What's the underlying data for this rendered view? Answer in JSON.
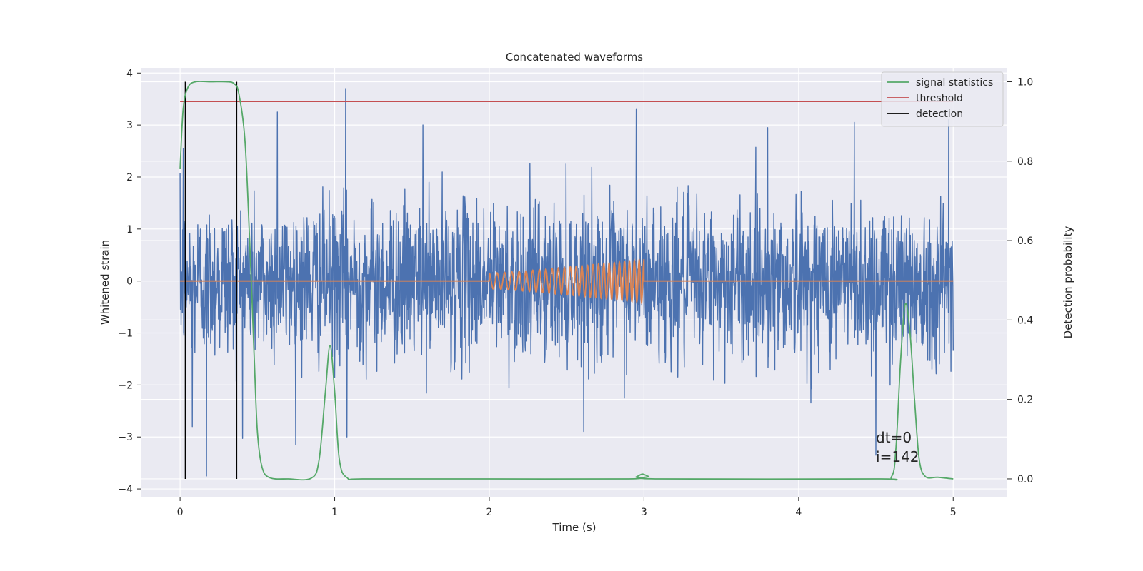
{
  "chart_data": {
    "type": "line",
    "title": "Concatenated waveforms",
    "xlabel": "Time (s)",
    "ylabel": "Whitened strain",
    "y2label": "Detection probability",
    "xlim": [
      -0.25,
      5.35
    ],
    "ylim": [
      -4.15,
      4.1
    ],
    "y2lim": [
      -0.045,
      1.035
    ],
    "xticks": [
      0,
      1,
      2,
      3,
      4,
      5
    ],
    "yticks": [
      -4,
      -3,
      -2,
      -1,
      0,
      1,
      2,
      3,
      4
    ],
    "y2ticks": [
      0.0,
      0.2,
      0.4,
      0.6,
      0.8,
      1.0
    ],
    "y2tick_labels": [
      "0.0",
      "0.2",
      "0.4",
      "0.6",
      "0.8",
      "1.0"
    ],
    "grid": true,
    "legend_position": "top-right",
    "series": [
      {
        "key": "noise",
        "name": "",
        "axis": "left",
        "color": "#4c72b0",
        "x_range": [
          0,
          5
        ],
        "sigma": 0.75,
        "spikes": [
          {
            "x": 0.02,
            "y": 2.55
          },
          {
            "x": 0.08,
            "y": -2.8
          },
          {
            "x": 0.17,
            "y": -3.75
          },
          {
            "x": 1.07,
            "y": 3.7
          },
          {
            "x": 1.08,
            "y": -3.0
          },
          {
            "x": 2.95,
            "y": 3.3
          },
          {
            "x": 4.97,
            "y": 3.1
          },
          {
            "x": 4.5,
            "y": -3.35
          },
          {
            "x": 0.63,
            "y": 3.25
          },
          {
            "x": 1.57,
            "y": 3.0
          },
          {
            "x": 3.8,
            "y": 2.95
          },
          {
            "x": 4.36,
            "y": 3.05
          }
        ]
      },
      {
        "key": "injection",
        "name": "",
        "axis": "left",
        "color": "#dd8452",
        "x_range": [
          0,
          5
        ],
        "chirp_start": 2.0,
        "chirp_end": 3.0,
        "amp_start": 0.15,
        "amp_end": 0.42,
        "cycles": 26
      },
      {
        "key": "statistic",
        "name": "signal statistics",
        "axis": "right",
        "color": "#55a868",
        "points": [
          [
            0.0,
            0.78
          ],
          [
            0.02,
            0.93
          ],
          [
            0.05,
            0.985
          ],
          [
            0.1,
            1.0
          ],
          [
            0.2,
            1.0
          ],
          [
            0.3,
            1.0
          ],
          [
            0.35,
            0.995
          ],
          [
            0.38,
            0.97
          ],
          [
            0.42,
            0.85
          ],
          [
            0.45,
            0.6
          ],
          [
            0.48,
            0.3
          ],
          [
            0.5,
            0.12
          ],
          [
            0.53,
            0.03
          ],
          [
            0.58,
            0.003
          ],
          [
            0.7,
            0.0
          ],
          [
            0.85,
            0.002
          ],
          [
            0.9,
            0.05
          ],
          [
            0.94,
            0.22
          ],
          [
            0.97,
            0.335
          ],
          [
            1.0,
            0.22
          ],
          [
            1.03,
            0.05
          ],
          [
            1.08,
            0.003
          ],
          [
            1.2,
            0.0
          ],
          [
            2.0,
            0.0
          ],
          [
            2.9,
            0.0
          ],
          [
            2.95,
            0.005
          ],
          [
            2.99,
            0.012
          ],
          [
            3.03,
            0.006
          ],
          [
            3.1,
            0.0
          ],
          [
            4.5,
            0.0
          ],
          [
            4.6,
            0.005
          ],
          [
            4.63,
            0.08
          ],
          [
            4.66,
            0.3
          ],
          [
            4.69,
            0.44
          ],
          [
            4.72,
            0.37
          ],
          [
            4.75,
            0.2
          ],
          [
            4.78,
            0.05
          ],
          [
            4.82,
            0.006
          ],
          [
            4.9,
            0.004
          ],
          [
            5.0,
            0.0
          ]
        ]
      },
      {
        "key": "threshold",
        "name": "threshold",
        "axis": "right",
        "color": "#c44e52",
        "x_range": [
          0,
          5
        ],
        "value": 0.95
      },
      {
        "key": "detection",
        "name": "detection",
        "axis": "right",
        "color": "#000000",
        "x": [
          0.035,
          0.365
        ],
        "y_range": [
          0.0,
          1.0
        ]
      }
    ],
    "annotation": {
      "lines": [
        "dt=0",
        "i=142"
      ],
      "x": 4.5,
      "y": -3.0
    }
  }
}
